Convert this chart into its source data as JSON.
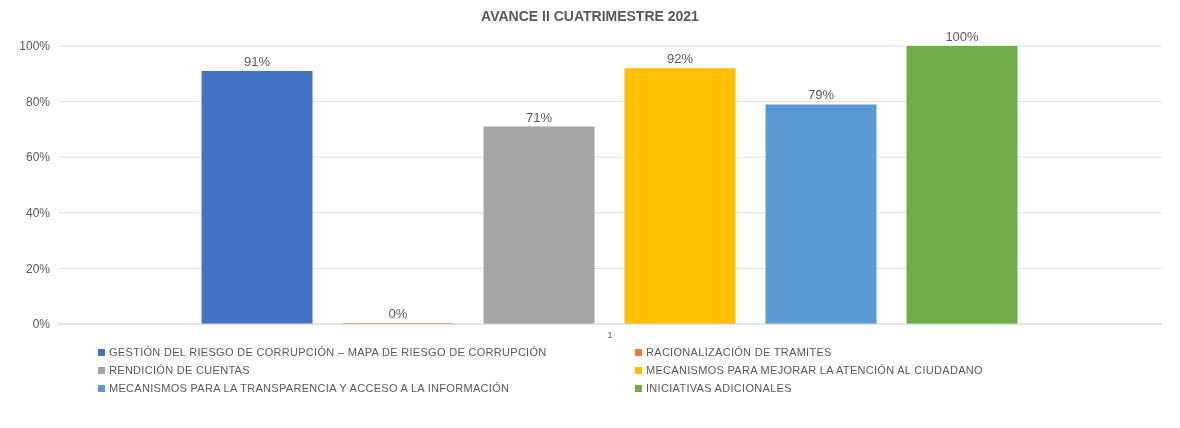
{
  "chart_data": {
    "type": "bar",
    "title": "AVANCE II CUATRIMESTRE 2021",
    "categories": [
      "1"
    ],
    "series": [
      {
        "name": "GESTIÓN  DEL RIESGO DE CORRUPCIÓN  – MAPA DE RIESGO DE CORRUPCIÓN",
        "color": "#4472c4",
        "values": [
          91
        ],
        "value_labels": [
          "91%"
        ]
      },
      {
        "name": "RACIONALIZACIÓN DE TRAMITES",
        "color": "#ed7d31",
        "values": [
          0
        ],
        "value_labels": [
          "0%"
        ]
      },
      {
        "name": "RENDICIÓN DE CUENTAS",
        "color": "#a5a5a5",
        "values": [
          71
        ],
        "value_labels": [
          "71%"
        ]
      },
      {
        "name": "MECANISMOS PARA MEJORAR LA ATENCIÓN AL CIUDADANO",
        "color": "#ffc000",
        "values": [
          92
        ],
        "value_labels": [
          "92%"
        ]
      },
      {
        "name": "MECANISMOS PARA LA TRANSPARENCIA Y ACCESO A LA INFORMACIÓN",
        "color": "#5b9bd5",
        "values": [
          79
        ],
        "value_labels": [
          "79%"
        ]
      },
      {
        "name": "INICIATIVAS ADICIONALES",
        "color": "#70ad47",
        "values": [
          100
        ],
        "value_labels": [
          "100%"
        ]
      }
    ],
    "ylim": [
      0,
      100
    ],
    "yticks": [
      {
        "value": 0,
        "label": "0%"
      },
      {
        "value": 20,
        "label": "20%"
      },
      {
        "value": 40,
        "label": "40%"
      },
      {
        "value": 60,
        "label": "60%"
      },
      {
        "value": 80,
        "label": "80%"
      },
      {
        "value": 100,
        "label": "100%"
      }
    ],
    "grid": "y",
    "legend": "bottom"
  }
}
